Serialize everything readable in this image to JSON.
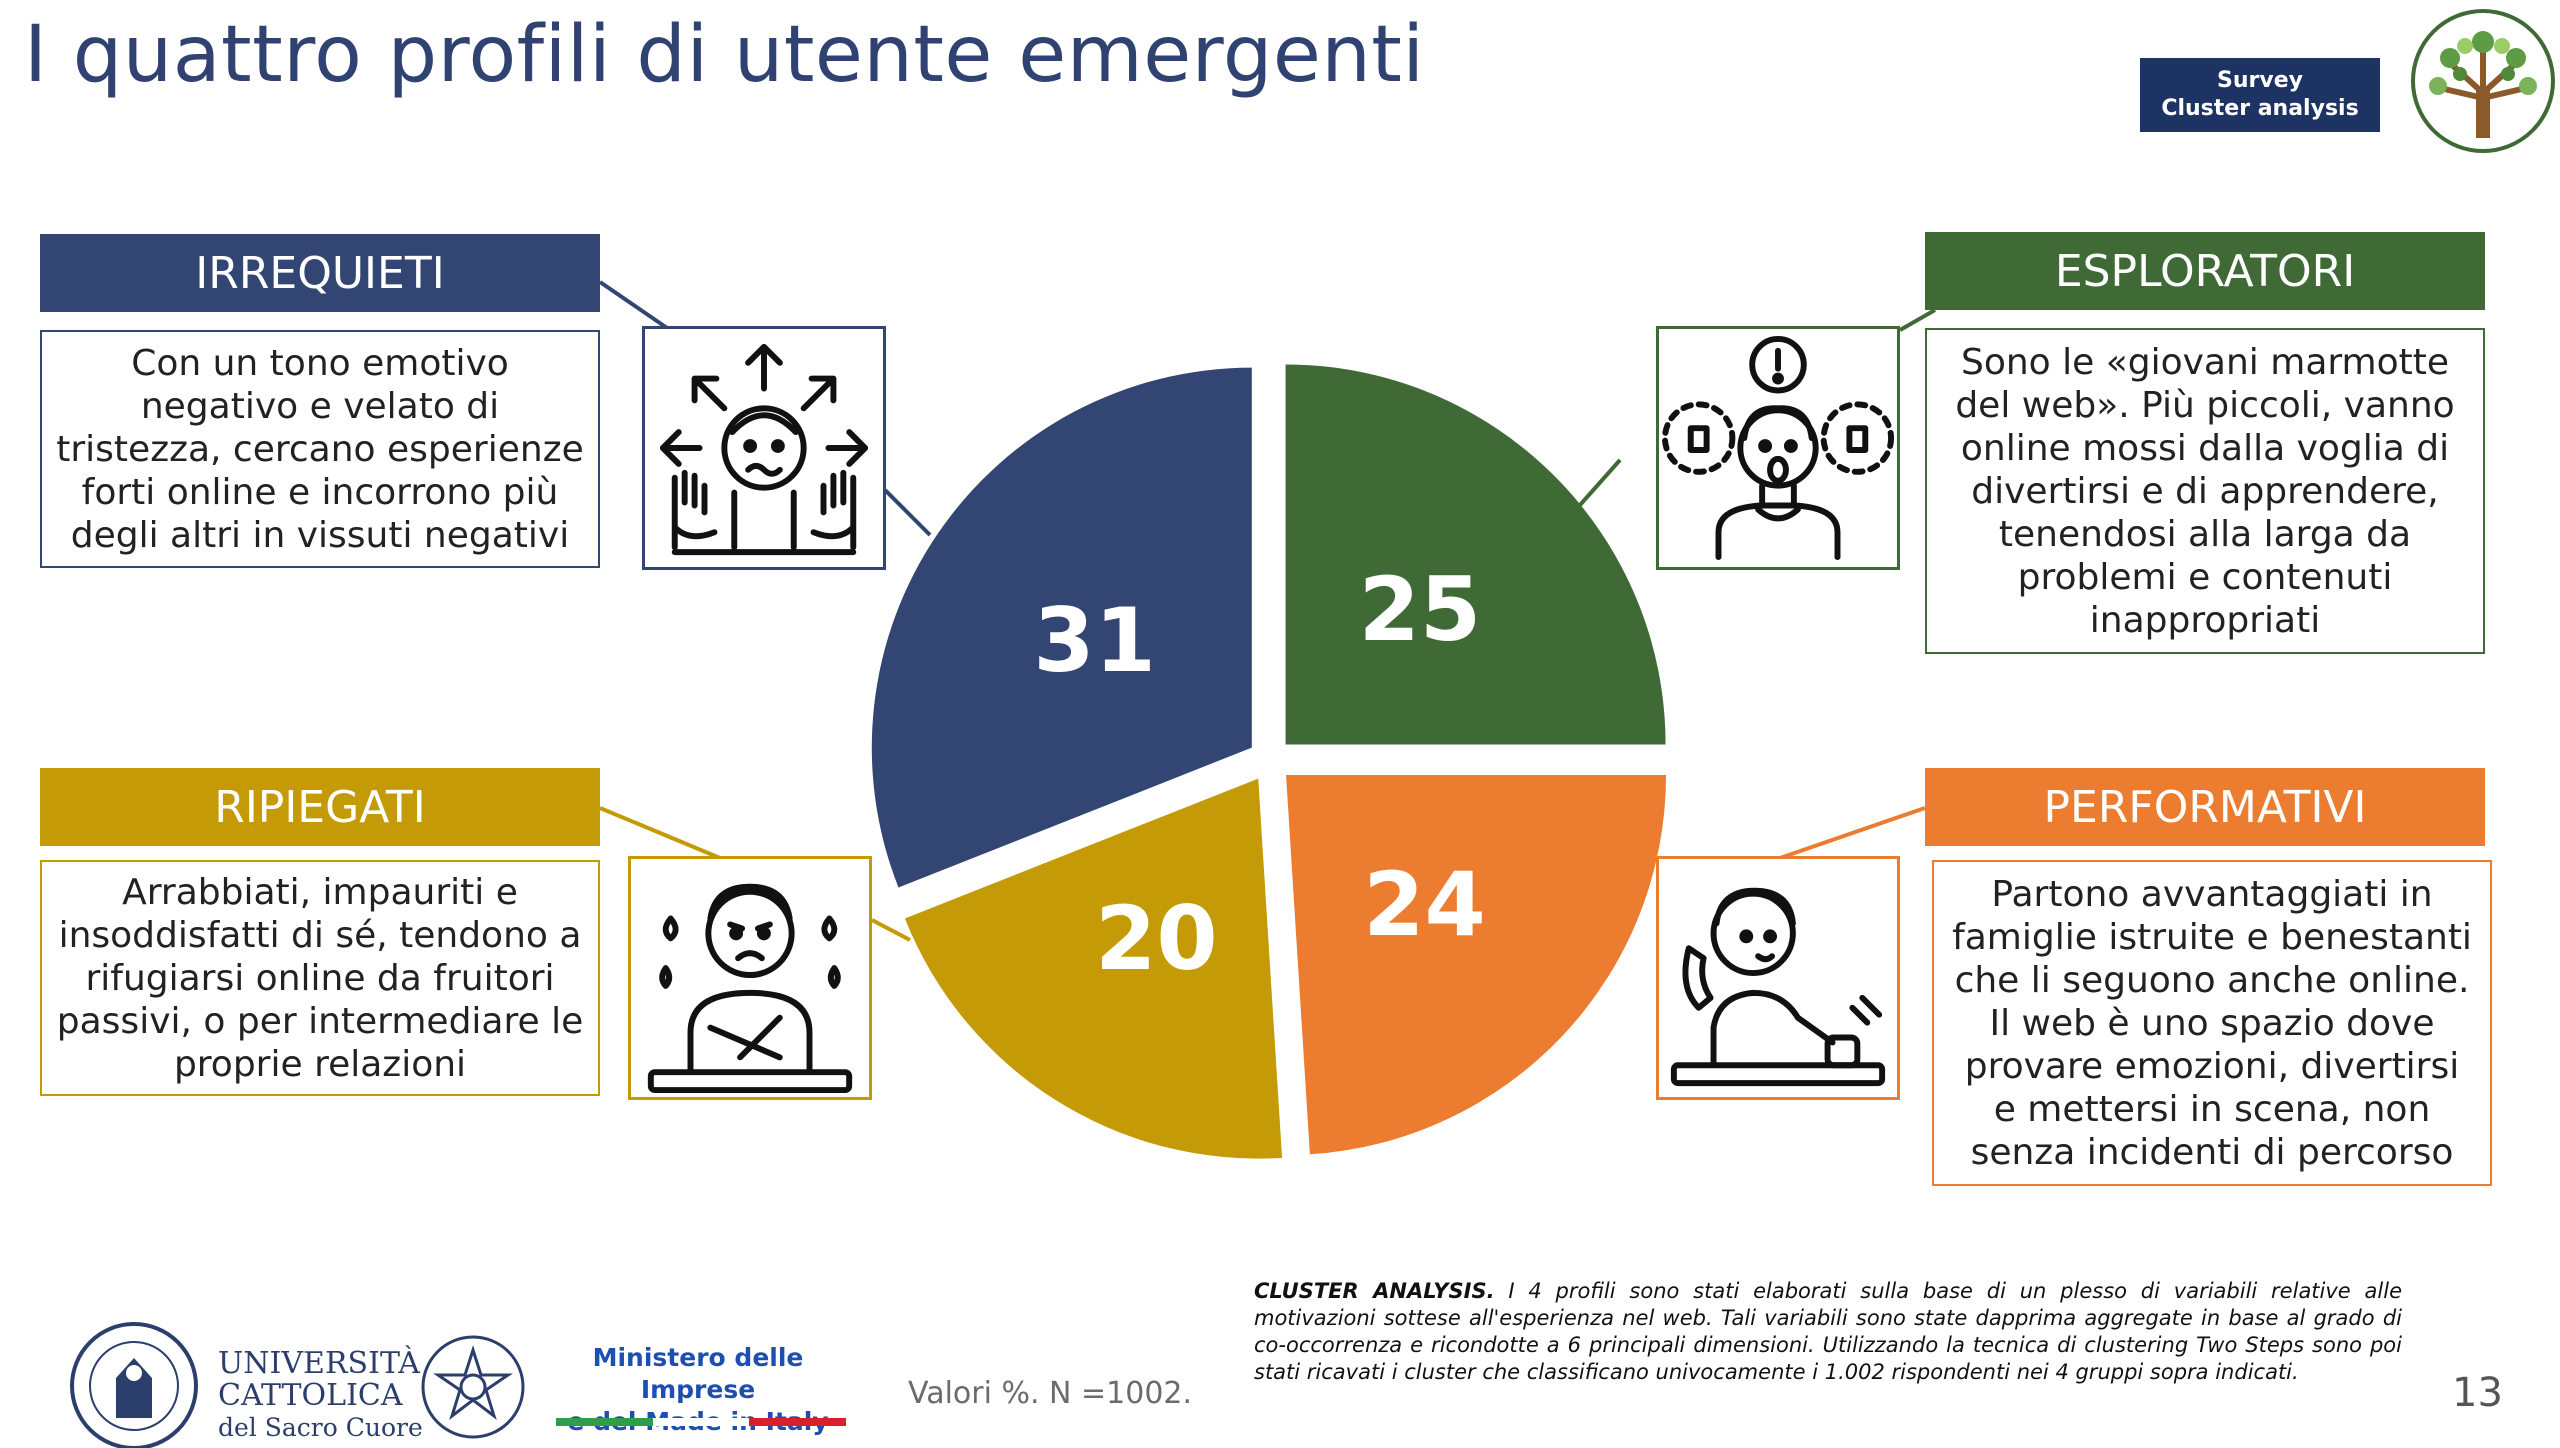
{
  "title": "I quattro profili di utente emergenti",
  "badge": {
    "line1": "Survey",
    "line2": "Cluster analysis"
  },
  "profiles": {
    "irrequieti": {
      "label": "IRREQUIETI",
      "text": "Con un tono emotivo negativo e velato di tristezza, cercano esperienze forti online e incorrono più degli altri in vissuti negativi"
    },
    "esploratori": {
      "label": "ESPLORATORI",
      "text": "Sono le «giovani marmotte del web». Più piccoli, vanno online mossi dalla voglia di divertirsi e di apprendere, tenendosi alla larga da problemi e contenuti inappropriati"
    },
    "ripiegati": {
      "label": "RIPIEGATI",
      "text": "Arrabbiati, impauriti e insoddisfatti di sé, tendono a rifugiarsi online da fruitori passivi, o per intermediare le proprie relazioni"
    },
    "performativi": {
      "label": "PERFORMATIVI",
      "text": "Partono avvantaggiati in famiglie istruite e benestanti che li seguono anche online. Il web è uno spazio dove provare emozioni, divertirsi e mettersi in scena, non senza incidenti di percorso"
    }
  },
  "chart_data": {
    "type": "pie",
    "categories": [
      "ESPLORATORI",
      "PERFORMATIVI",
      "RIPIEGATI",
      "IRREQUIETI"
    ],
    "values": [
      25,
      24,
      20,
      31
    ],
    "colors": [
      "#3f6a35",
      "#ec7c30",
      "#c49a06",
      "#334573"
    ],
    "exploded": true,
    "unit": "%"
  },
  "footer": {
    "note_label": "CLUSTER ANALYSIS.",
    "note_text": " I 4 profili sono stati elaborati sulla base di un plesso di variabili relative alle motivazioni sottese all'esperienza nel web. Tali variabili sono state dapprima aggregate in base al grado di co-occorrenza e ricondotte a 6 principali dimensioni. Utilizzando la tecnica di clustering Two Steps sono poi stati ricavati i cluster che classificano univocamente i 1.002 rispondenti nei 4 gruppi sopra indicati.",
    "valori": "Valori %. N =1002.",
    "page_number": "13",
    "ucsc": {
      "line1": "UNIVERSITÀ",
      "line2": "CATTOLICA",
      "line3": "del Sacro Cuore"
    },
    "mimit": {
      "line1": "Ministero delle Imprese",
      "line2": "e del Made in Italy"
    }
  }
}
